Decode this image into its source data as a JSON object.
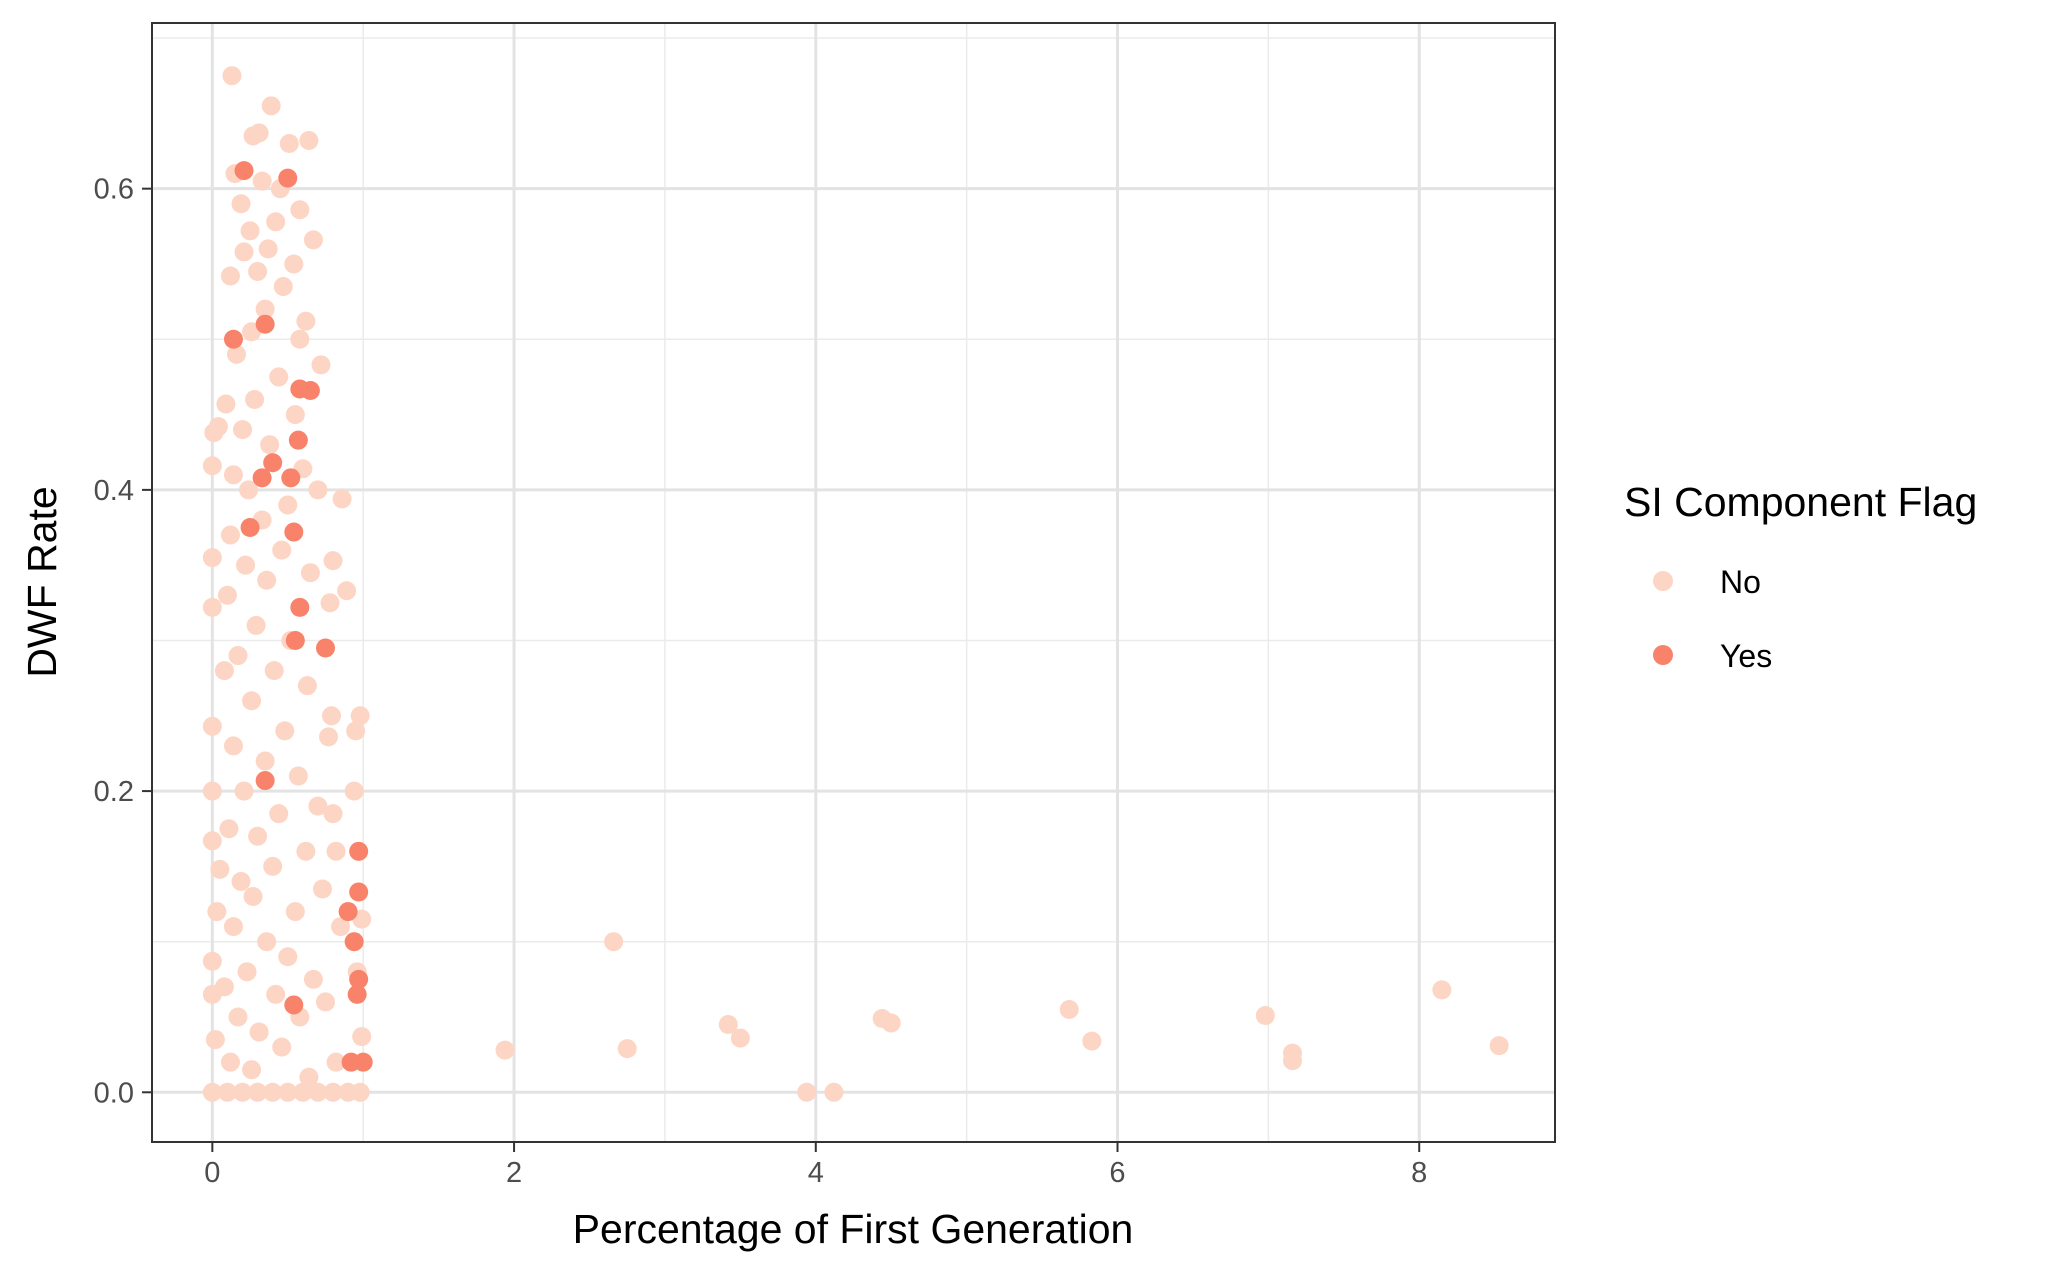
{
  "chart_data": {
    "type": "scatter",
    "title": "",
    "xlabel": "Percentage of First Generation",
    "ylabel": "DWF Rate",
    "xlim": [
      -0.4,
      8.9
    ],
    "ylim": [
      -0.033,
      0.71
    ],
    "x_ticks": [
      0,
      2,
      4,
      6,
      8
    ],
    "x_tick_labels": [
      "0",
      "2",
      "4",
      "6",
      "8"
    ],
    "y_ticks": [
      0.0,
      0.2,
      0.4,
      0.6
    ],
    "y_tick_labels": [
      "0.0",
      "0.2",
      "0.4",
      "0.6"
    ],
    "x_minor_ticks": [
      1,
      3,
      5,
      7
    ],
    "y_minor_ticks": [
      0.1,
      0.3,
      0.5,
      0.7
    ],
    "grid": true,
    "legend": {
      "title": "SI Component Flag",
      "position": "right",
      "entries": [
        {
          "label": "No",
          "color": "#FDD5C4"
        },
        {
          "label": "Yes",
          "color": "#F9836A"
        }
      ]
    },
    "series": [
      {
        "name": "No",
        "color": "#FDD5C4",
        "points": [
          [
            0.13,
            0.675
          ],
          [
            0.39,
            0.655
          ],
          [
            0.27,
            0.635
          ],
          [
            0.31,
            0.637
          ],
          [
            0.64,
            0.632
          ],
          [
            0.51,
            0.63
          ],
          [
            0.15,
            0.61
          ],
          [
            0.45,
            0.6
          ],
          [
            0.19,
            0.59
          ],
          [
            0.33,
            0.605
          ],
          [
            0.58,
            0.586
          ],
          [
            0.42,
            0.578
          ],
          [
            0.25,
            0.572
          ],
          [
            0.67,
            0.566
          ],
          [
            0.37,
            0.56
          ],
          [
            0.21,
            0.558
          ],
          [
            0.54,
            0.55
          ],
          [
            0.3,
            0.545
          ],
          [
            0.12,
            0.542
          ],
          [
            0.47,
            0.535
          ],
          [
            0.62,
            0.512
          ],
          [
            0.58,
            0.5
          ],
          [
            0.35,
            0.52
          ],
          [
            0.26,
            0.505
          ],
          [
            0.16,
            0.49
          ],
          [
            0.72,
            0.483
          ],
          [
            0.44,
            0.475
          ],
          [
            0.28,
            0.46
          ],
          [
            0.09,
            0.457
          ],
          [
            0.55,
            0.45
          ],
          [
            0.2,
            0.44
          ],
          [
            0.01,
            0.438
          ],
          [
            0.38,
            0.43
          ],
          [
            0.04,
            0.442
          ],
          [
            0.6,
            0.414
          ],
          [
            0.0,
            0.416
          ],
          [
            0.14,
            0.41
          ],
          [
            0.24,
            0.4
          ],
          [
            0.7,
            0.4
          ],
          [
            0.86,
            0.394
          ],
          [
            0.5,
            0.39
          ],
          [
            0.33,
            0.38
          ],
          [
            0.12,
            0.37
          ],
          [
            0.46,
            0.36
          ],
          [
            0.0,
            0.355
          ],
          [
            0.8,
            0.353
          ],
          [
            0.22,
            0.35
          ],
          [
            0.65,
            0.345
          ],
          [
            0.36,
            0.34
          ],
          [
            0.89,
            0.333
          ],
          [
            0.1,
            0.33
          ],
          [
            0.78,
            0.325
          ],
          [
            0.0,
            0.322
          ],
          [
            0.29,
            0.31
          ],
          [
            0.52,
            0.3
          ],
          [
            0.17,
            0.29
          ],
          [
            0.41,
            0.28
          ],
          [
            0.08,
            0.28
          ],
          [
            0.63,
            0.27
          ],
          [
            0.26,
            0.26
          ],
          [
            0.98,
            0.25
          ],
          [
            0.79,
            0.25
          ],
          [
            0.0,
            0.243
          ],
          [
            0.95,
            0.24
          ],
          [
            0.48,
            0.24
          ],
          [
            0.77,
            0.236
          ],
          [
            0.14,
            0.23
          ],
          [
            0.35,
            0.22
          ],
          [
            0.57,
            0.21
          ],
          [
            0.21,
            0.2
          ],
          [
            0.0,
            0.2
          ],
          [
            0.94,
            0.2
          ],
          [
            0.7,
            0.19
          ],
          [
            0.44,
            0.185
          ],
          [
            0.8,
            0.185
          ],
          [
            0.11,
            0.175
          ],
          [
            0.0,
            0.167
          ],
          [
            0.3,
            0.17
          ],
          [
            0.62,
            0.16
          ],
          [
            0.82,
            0.16
          ],
          [
            0.05,
            0.148
          ],
          [
            0.4,
            0.15
          ],
          [
            0.19,
            0.14
          ],
          [
            0.73,
            0.135
          ],
          [
            0.27,
            0.13
          ],
          [
            0.03,
            0.12
          ],
          [
            0.55,
            0.12
          ],
          [
            0.99,
            0.115
          ],
          [
            0.14,
            0.11
          ],
          [
            0.85,
            0.11
          ],
          [
            0.36,
            0.1
          ],
          [
            0.0,
            0.087
          ],
          [
            0.5,
            0.09
          ],
          [
            0.23,
            0.08
          ],
          [
            0.67,
            0.075
          ],
          [
            0.96,
            0.08
          ],
          [
            0.08,
            0.07
          ],
          [
            0.42,
            0.065
          ],
          [
            0.0,
            0.065
          ],
          [
            0.75,
            0.06
          ],
          [
            0.17,
            0.05
          ],
          [
            0.58,
            0.05
          ],
          [
            0.31,
            0.04
          ],
          [
            0.02,
            0.035
          ],
          [
            0.99,
            0.037
          ],
          [
            0.46,
            0.03
          ],
          [
            0.12,
            0.02
          ],
          [
            0.82,
            0.02
          ],
          [
            0.26,
            0.015
          ],
          [
            0.64,
            0.01
          ],
          [
            0.0,
            0.0
          ],
          [
            0.1,
            0.0
          ],
          [
            0.2,
            0.0
          ],
          [
            0.3,
            0.0
          ],
          [
            0.4,
            0.0
          ],
          [
            0.5,
            0.0
          ],
          [
            0.6,
            0.0
          ],
          [
            0.7,
            0.0
          ],
          [
            0.8,
            0.0
          ],
          [
            0.9,
            0.0
          ],
          [
            0.98,
            0.0
          ],
          [
            1.94,
            0.028
          ],
          [
            2.66,
            0.1
          ],
          [
            2.75,
            0.029
          ],
          [
            3.42,
            0.045
          ],
          [
            3.5,
            0.036
          ],
          [
            3.94,
            0.0
          ],
          [
            4.12,
            0.0
          ],
          [
            4.44,
            0.049
          ],
          [
            4.5,
            0.046
          ],
          [
            5.68,
            0.055
          ],
          [
            5.83,
            0.034
          ],
          [
            6.98,
            0.051
          ],
          [
            7.16,
            0.026
          ],
          [
            7.16,
            0.021
          ],
          [
            8.15,
            0.068
          ],
          [
            8.53,
            0.031
          ]
        ]
      },
      {
        "name": "Yes",
        "color": "#F9836A",
        "points": [
          [
            0.21,
            0.612
          ],
          [
            0.5,
            0.607
          ],
          [
            0.14,
            0.5
          ],
          [
            0.35,
            0.51
          ],
          [
            0.58,
            0.467
          ],
          [
            0.65,
            0.466
          ],
          [
            0.57,
            0.433
          ],
          [
            0.4,
            0.418
          ],
          [
            0.52,
            0.408
          ],
          [
            0.33,
            0.408
          ],
          [
            0.25,
            0.375
          ],
          [
            0.54,
            0.372
          ],
          [
            0.58,
            0.322
          ],
          [
            0.75,
            0.295
          ],
          [
            0.55,
            0.3
          ],
          [
            0.35,
            0.207
          ],
          [
            0.97,
            0.16
          ],
          [
            0.97,
            0.133
          ],
          [
            0.9,
            0.12
          ],
          [
            0.94,
            0.1
          ],
          [
            0.97,
            0.075
          ],
          [
            0.96,
            0.065
          ],
          [
            0.54,
            0.058
          ],
          [
            0.92,
            0.02
          ],
          [
            1.0,
            0.02
          ]
        ]
      }
    ]
  }
}
